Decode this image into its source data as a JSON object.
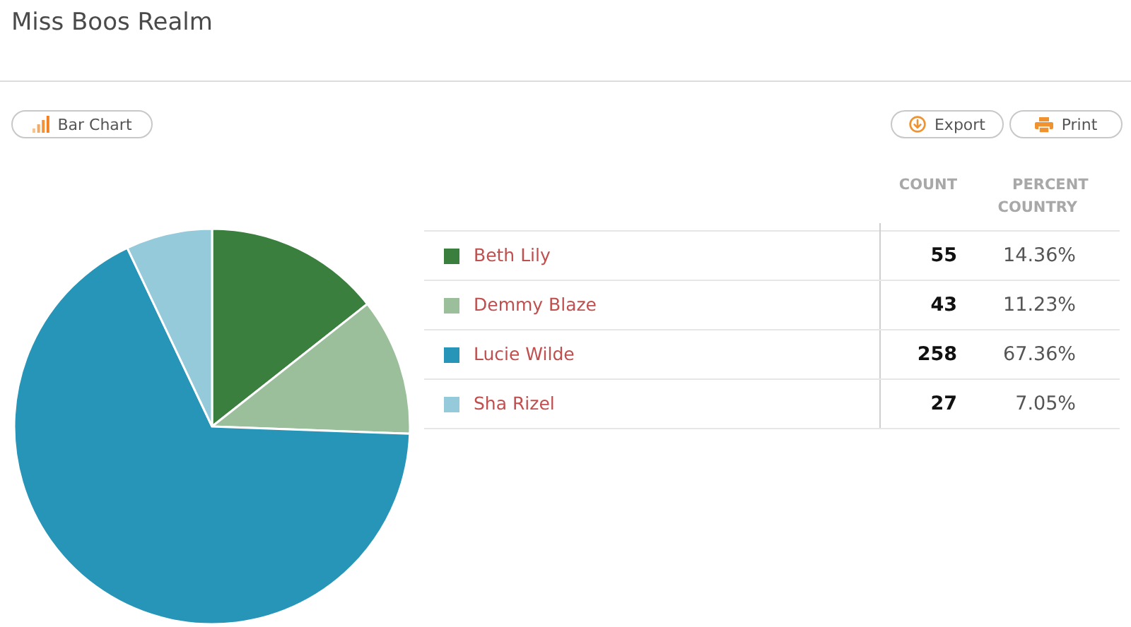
{
  "chart_data": {
    "type": "pie",
    "title": "Miss Boos Realm",
    "categories": [
      "Beth Lily",
      "Demmy Blaze",
      "Lucie Wilde",
      "Sha Rizel"
    ],
    "values": [
      55,
      43,
      258,
      27
    ],
    "colors": [
      "#3a7f3e",
      "#9bbf9b",
      "#2795b8",
      "#95cadb"
    ],
    "data_labels": true,
    "legend": "right",
    "annotations": [
      "Bar Chart",
      "Export",
      "Print",
      "COUNT",
      "PERCENT",
      "COUNTRY",
      "14.36%",
      "11.23%",
      "67.36%",
      "7.05%"
    ]
  }
}
